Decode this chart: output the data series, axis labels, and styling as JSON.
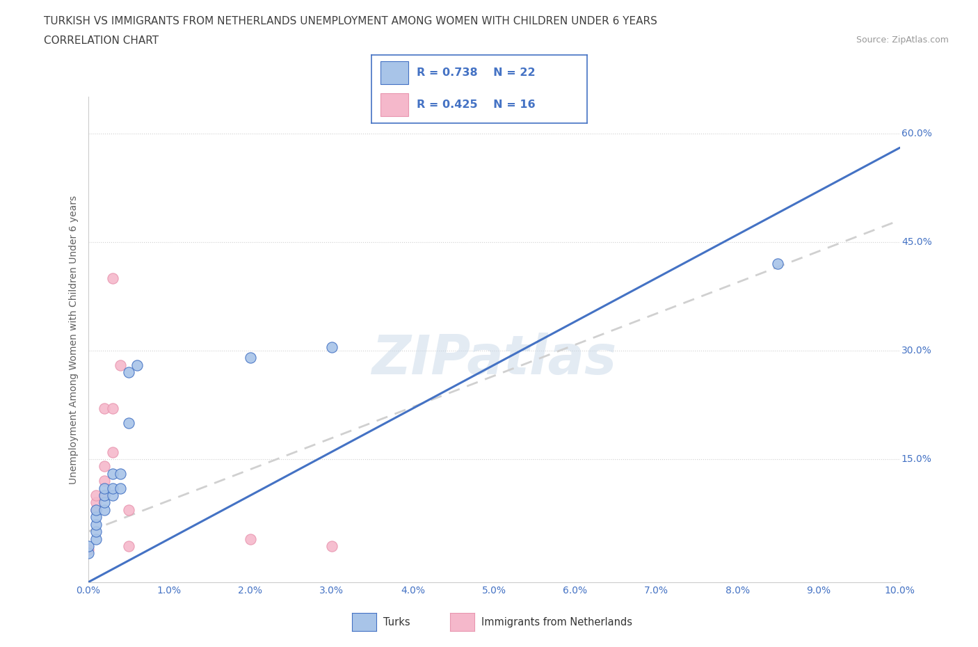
{
  "title_line1": "TURKISH VS IMMIGRANTS FROM NETHERLANDS UNEMPLOYMENT AMONG WOMEN WITH CHILDREN UNDER 6 YEARS",
  "title_line2": "CORRELATION CHART",
  "source": "Source: ZipAtlas.com",
  "ylabel_label": "Unemployment Among Women with Children Under 6 years",
  "xmin": 0.0,
  "xmax": 0.1,
  "ymin": -0.02,
  "ymax": 0.65,
  "turks_x": [
    0.0,
    0.0,
    0.001,
    0.001,
    0.001,
    0.001,
    0.001,
    0.002,
    0.002,
    0.002,
    0.002,
    0.003,
    0.003,
    0.003,
    0.004,
    0.004,
    0.005,
    0.005,
    0.006,
    0.02,
    0.03,
    0.085
  ],
  "turks_y": [
    0.02,
    0.03,
    0.04,
    0.05,
    0.06,
    0.07,
    0.08,
    0.08,
    0.09,
    0.1,
    0.11,
    0.1,
    0.11,
    0.13,
    0.11,
    0.13,
    0.2,
    0.27,
    0.28,
    0.29,
    0.305,
    0.42
  ],
  "nl_x": [
    0.0,
    0.001,
    0.001,
    0.001,
    0.002,
    0.002,
    0.002,
    0.002,
    0.003,
    0.003,
    0.003,
    0.004,
    0.005,
    0.005,
    0.02,
    0.03
  ],
  "nl_y": [
    0.025,
    0.08,
    0.09,
    0.1,
    0.1,
    0.12,
    0.14,
    0.22,
    0.16,
    0.22,
    0.4,
    0.28,
    0.08,
    0.03,
    0.04,
    0.03
  ],
  "turks_R": 0.738,
  "turks_N": 22,
  "nl_R": 0.425,
  "nl_N": 16,
  "turks_color": "#a8c4e8",
  "nl_color": "#f5b8cb",
  "turks_line_color": "#4472c4",
  "nl_line_color": "#e896b0",
  "legend_box_color": "#4472c4",
  "watermark": "ZIPatlas",
  "bg_color": "#ffffff",
  "grid_color": "#e8e8e8",
  "tick_color": "#4472c4",
  "title_color": "#404040",
  "axis_label_color": "#606060",
  "turks_regression": [
    0.0,
    0.1,
    -0.02,
    0.58
  ],
  "nl_regression": [
    0.0,
    0.1,
    0.05,
    0.48
  ]
}
